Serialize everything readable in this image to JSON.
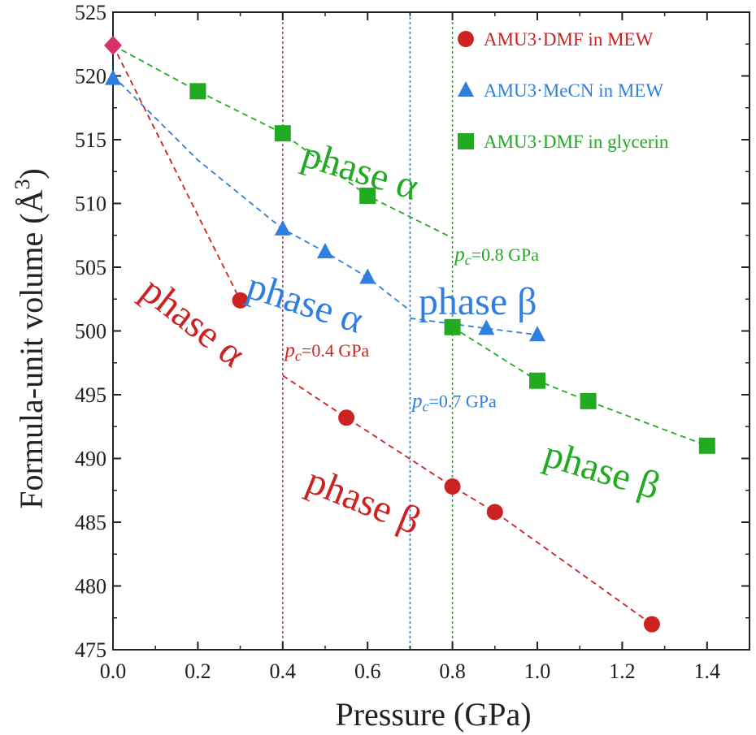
{
  "chart_data": {
    "type": "scatter",
    "xlabel": "Pressure (GPa)",
    "ylabel": "Formula-unit volume (Å",
    "ylabel_sup": "3",
    "ylabel_close": ")",
    "xlim": [
      0.0,
      1.5
    ],
    "ylim": [
      475,
      525
    ],
    "x_ticks": [
      "0.0",
      "0.2",
      "0.4",
      "0.6",
      "0.8",
      "1.0",
      "1.2",
      "1.4"
    ],
    "y_ticks": [
      "475",
      "480",
      "485",
      "490",
      "495",
      "500",
      "505",
      "510",
      "515",
      "520",
      "525"
    ],
    "grid": false,
    "legend_position": "top-right",
    "start_point": {
      "x": 0.0,
      "y": 522.4,
      "color": "#d6336c",
      "marker": "diamond"
    },
    "series": [
      {
        "name": "AMU3·DMF in MEW",
        "color": "#cc2222",
        "marker": "circle",
        "points": [
          [
            0.3,
            502.4
          ],
          [
            0.55,
            493.2
          ],
          [
            0.8,
            487.8
          ],
          [
            0.9,
            485.8
          ],
          [
            1.27,
            477.0
          ]
        ]
      },
      {
        "name": "AMU3·MeCN in MEW",
        "color": "#2f7fe0",
        "marker": "triangle",
        "points": [
          [
            0.0,
            519.8
          ],
          [
            0.4,
            508.0
          ],
          [
            0.5,
            506.2
          ],
          [
            0.6,
            504.2
          ],
          [
            0.88,
            500.2
          ],
          [
            1.0,
            499.7
          ]
        ]
      },
      {
        "name": "AMU3·DMF in glycerin",
        "color": "#22aa22",
        "marker": "square",
        "points": [
          [
            0.2,
            518.8
          ],
          [
            0.4,
            515.5
          ],
          [
            0.6,
            510.6
          ],
          [
            0.8,
            500.3
          ],
          [
            1.0,
            496.1
          ],
          [
            1.12,
            494.5
          ],
          [
            1.4,
            491.0
          ]
        ]
      }
    ],
    "fit_lines": [
      {
        "color": "#cc2222",
        "points": [
          [
            0.0,
            522.4
          ],
          [
            0.3,
            502.4
          ]
        ]
      },
      {
        "color": "#cc2222",
        "points": [
          [
            0.4,
            496.5
          ],
          [
            0.55,
            493.2
          ],
          [
            0.8,
            487.8
          ],
          [
            0.9,
            485.8
          ],
          [
            1.27,
            477.0
          ]
        ]
      },
      {
        "color": "#2f7fe0",
        "points": [
          [
            0.0,
            520.0
          ],
          [
            0.2,
            513.4
          ],
          [
            0.4,
            508.0
          ],
          [
            0.5,
            506.2
          ],
          [
            0.6,
            504.2
          ],
          [
            0.7,
            501.6
          ]
        ]
      },
      {
        "color": "#2f7fe0",
        "points": [
          [
            0.7,
            501.0
          ],
          [
            0.88,
            500.2
          ],
          [
            1.0,
            499.7
          ]
        ]
      },
      {
        "color": "#22aa22",
        "points": [
          [
            0.0,
            522.4
          ],
          [
            0.2,
            518.8
          ],
          [
            0.4,
            515.5
          ],
          [
            0.6,
            510.6
          ],
          [
            0.8,
            507.3
          ]
        ]
      },
      {
        "color": "#22aa22",
        "points": [
          [
            0.8,
            500.3
          ],
          [
            1.0,
            496.1
          ],
          [
            1.12,
            494.5
          ],
          [
            1.4,
            491.0
          ]
        ]
      }
    ],
    "transitions": [
      {
        "x": 0.4,
        "color": "#d6336c",
        "label_prefix": "p",
        "label_sub": "c",
        "label_value": "=0.4 GPa",
        "label_x": 0.405,
        "label_y": 498.0,
        "text_color": "#cc2222"
      },
      {
        "x": 0.7,
        "color": "#2f7fe0",
        "label_prefix": "p",
        "label_sub": "c",
        "label_value": "=0.7 GPa",
        "label_x": 0.705,
        "label_y": 494.0,
        "text_color": "#2f7fe0"
      },
      {
        "x": 0.8,
        "color": "#22aa22",
        "label_prefix": "p",
        "label_sub": "c",
        "label_value": "=0.8 GPa",
        "label_x": 0.805,
        "label_y": 505.5,
        "text_color": "#22aa22"
      }
    ],
    "annotations": [
      {
        "text": "phase α",
        "x": 0.44,
        "y": 513.0,
        "rotate": 17,
        "color": "#22aa22"
      },
      {
        "text": "phase α",
        "x": 0.31,
        "y": 502.7,
        "rotate": 18,
        "color": "#2f7fe0"
      },
      {
        "text": "phase β",
        "x": 0.72,
        "y": 501.3,
        "rotate": 0,
        "color": "#2f7fe0"
      },
      {
        "text": "phase α",
        "x": 0.06,
        "y": 502.8,
        "rotate": 38,
        "color": "#cc2222"
      },
      {
        "text": "phase β",
        "x": 0.45,
        "y": 487.5,
        "rotate": 22,
        "color": "#cc2222"
      },
      {
        "text": "phase β",
        "x": 1.01,
        "y": 489.5,
        "rotate": 17,
        "color": "#22aa22"
      }
    ]
  }
}
